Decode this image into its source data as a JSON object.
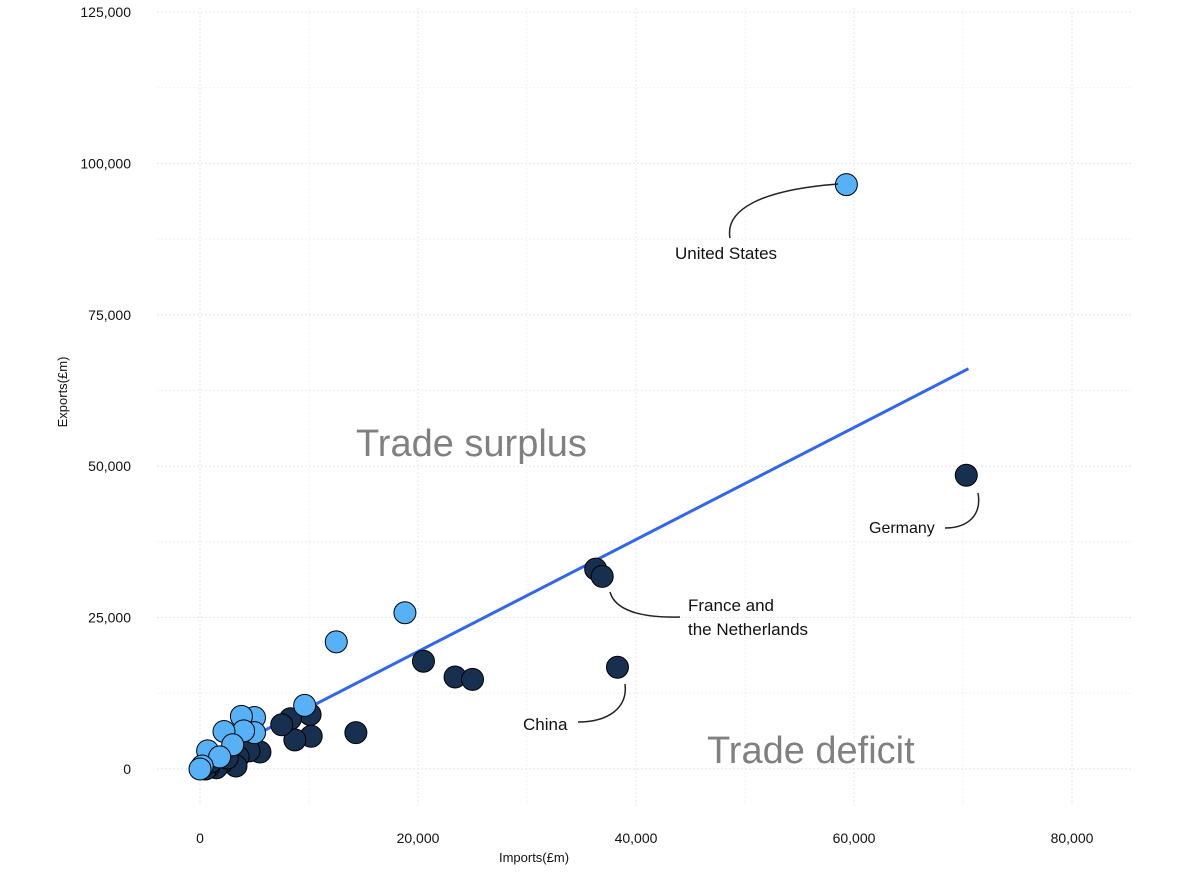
{
  "chart_data": {
    "type": "scatter",
    "title": "",
    "xlabel": "Imports(£m)",
    "ylabel": "Exports(£m)",
    "xlim": [
      -4000,
      85000
    ],
    "ylim": [
      -6000,
      126000
    ],
    "x_ticks": [
      0,
      20000,
      40000,
      60000,
      80000
    ],
    "x_tick_labels": [
      "0",
      "20,000",
      "40,000",
      "60,000",
      "80,000"
    ],
    "y_ticks": [
      0,
      25000,
      50000,
      75000,
      100000,
      125000
    ],
    "y_tick_labels": [
      "0",
      "25,000",
      "50,000",
      "75,000",
      "100,000",
      "125,000"
    ],
    "grid": true,
    "legend": "none",
    "colors": {
      "eu": "#17304f",
      "non_eu": "#56b1f7",
      "trend": "#3366ee",
      "region_text": "#808080",
      "marker_outline": "#000000"
    },
    "series": [
      {
        "color": "#17304f",
        "points": [
          [
            70300,
            48500
          ],
          [
            36300,
            33000
          ],
          [
            36900,
            31800
          ],
          [
            38300,
            16800
          ],
          [
            20500,
            17800
          ],
          [
            23400,
            15200
          ],
          [
            25000,
            14800
          ],
          [
            14300,
            6000
          ],
          [
            10100,
            9000
          ],
          [
            10200,
            5400
          ],
          [
            8700,
            4800
          ],
          [
            8300,
            8300
          ],
          [
            7500,
            7300
          ],
          [
            5500,
            2800
          ],
          [
            4500,
            3000
          ],
          [
            3500,
            2000
          ],
          [
            3300,
            500
          ],
          [
            2000,
            1000
          ],
          [
            1500,
            200
          ],
          [
            800,
            400
          ],
          [
            500,
            0
          ],
          [
            200,
            300
          ],
          [
            1000,
            1200
          ],
          [
            2500,
            1800
          ]
        ]
      },
      {
        "color": "#56b1f7",
        "points": [
          [
            59300,
            96500
          ],
          [
            18800,
            25800
          ],
          [
            12500,
            21000
          ],
          [
            9600,
            10500
          ],
          [
            5000,
            8500
          ],
          [
            3800,
            8700
          ],
          [
            5000,
            6000
          ],
          [
            4000,
            6300
          ],
          [
            2200,
            6200
          ],
          [
            3000,
            4000
          ],
          [
            700,
            3000
          ],
          [
            1800,
            2000
          ],
          [
            200,
            500
          ],
          [
            0,
            0
          ]
        ]
      }
    ],
    "trend_line": {
      "x": [
        0,
        70500
      ],
      "y": [
        900,
        66100
      ]
    },
    "annotations": [
      {
        "lines": [
          "United States"
        ],
        "point": [
          59300,
          96500
        ]
      },
      {
        "lines": [
          "Germany"
        ],
        "point": [
          70300,
          48500
        ]
      },
      {
        "lines": [
          "France and",
          "the Netherlands"
        ],
        "point": [
          36900,
          31800
        ]
      },
      {
        "lines": [
          "China"
        ],
        "point": [
          38300,
          16800
        ]
      }
    ],
    "region_labels": [
      "Trade surplus",
      "Trade deficit"
    ]
  }
}
